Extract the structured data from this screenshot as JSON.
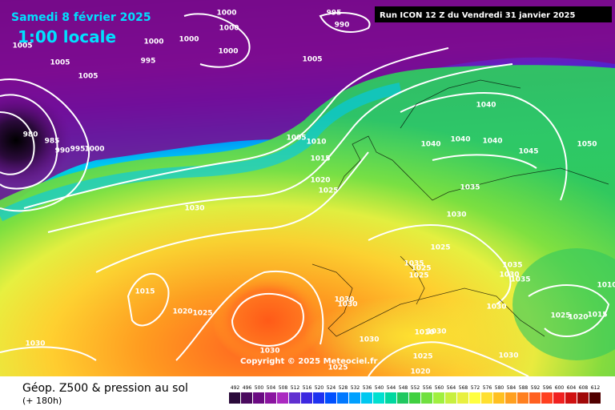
{
  "valid_date": "Samedi 8 février 2025",
  "local_time": "1:00 locale",
  "run": "Run ICON 12 Z du Vendredi 31 janvier 2025",
  "copyright": "Copyright © 2025 Meteociel.fr",
  "title": "Géop. Z500 & pression au sol",
  "lead_time": "(+ 180h)",
  "isobar_labels": [
    "1005",
    "1005",
    "1005",
    "1000",
    "1000",
    "1000",
    "1000",
    "995",
    "990",
    "995",
    "1000",
    "1005",
    "980",
    "985",
    "990",
    "995",
    "1000",
    "1040",
    "1040",
    "1040",
    "1040",
    "1045",
    "1050",
    "1005",
    "1010",
    "1015",
    "1020",
    "1025",
    "1035",
    "1030",
    "1030",
    "1025",
    "1035",
    "1025",
    "1025",
    "1035",
    "1030",
    "1035",
    "1015",
    "1020",
    "1025",
    "1030",
    "1030",
    "1010",
    "1025",
    "1020",
    "1015",
    "1030",
    "1030",
    "1030",
    "1030",
    "1010",
    "1030",
    "1030",
    "1025",
    "1025",
    "1020"
  ],
  "scale": {
    "values": [
      492,
      496,
      500,
      504,
      508,
      512,
      516,
      520,
      524,
      528,
      532,
      536,
      540,
      544,
      548,
      552,
      556,
      560,
      564,
      568,
      572,
      576,
      580,
      584,
      588,
      592,
      596,
      600,
      604,
      608,
      612
    ],
    "colors": [
      "#2a0a3a",
      "#4a0a5e",
      "#6a0a82",
      "#8a14a0",
      "#aa2ac0",
      "#6030d0",
      "#3c28e0",
      "#1e32f0",
      "#0050ff",
      "#0078ff",
      "#00a0ff",
      "#00c8f0",
      "#00e0d0",
      "#00d8a0",
      "#20c860",
      "#40d040",
      "#70e040",
      "#a0f040",
      "#c8f040",
      "#e8f040",
      "#ffff40",
      "#ffe030",
      "#ffc020",
      "#ffa020",
      "#ff8020",
      "#ff6020",
      "#ff4020",
      "#f02020",
      "#d01010",
      "#a00808",
      "#500000"
    ]
  }
}
